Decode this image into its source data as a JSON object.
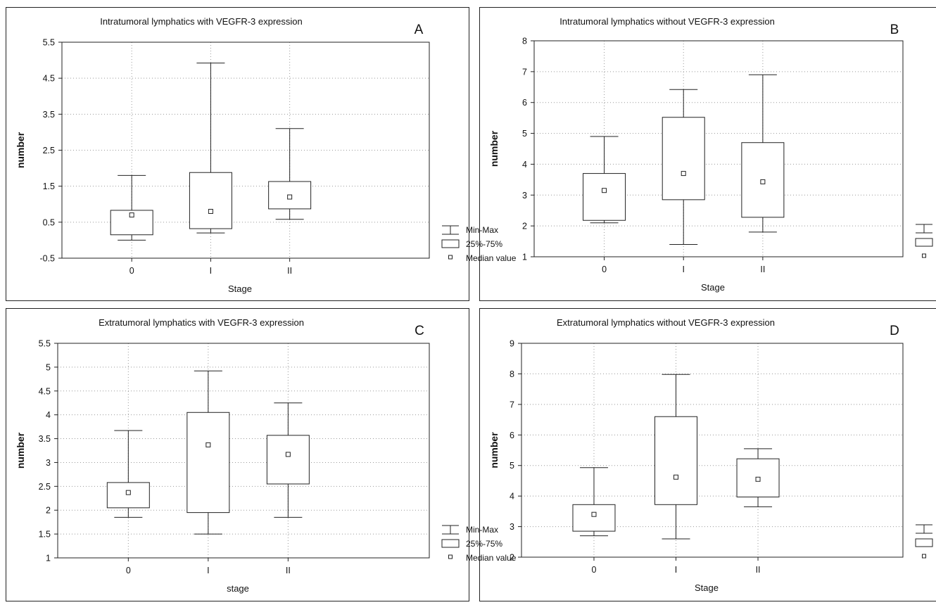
{
  "legend": {
    "minmax": "Min-Max",
    "iqr": "25%-75%",
    "median": "Median value"
  },
  "chart_data": [
    {
      "type": "box",
      "letter": "A",
      "title": "Intratumoral lymphatics with VEGFR-3 expression",
      "xlabel": "Stage",
      "ylabel": "number",
      "categories": [
        "0",
        "I",
        "II"
      ],
      "ylim": [
        -0.5,
        5.5
      ],
      "yticks": [
        "-0.5",
        "0.5",
        "1.5",
        "2.5",
        "3.5",
        "4.5",
        "5.5"
      ],
      "grid": true,
      "boxes": [
        {
          "min": 0.0,
          "q1": 0.15,
          "median": 0.7,
          "q3": 0.83,
          "max": 1.8
        },
        {
          "min": 0.2,
          "q1": 0.32,
          "median": 0.8,
          "q3": 1.88,
          "max": 4.92
        },
        {
          "min": 0.58,
          "q1": 0.87,
          "median": 1.2,
          "q3": 1.63,
          "max": 3.1
        }
      ]
    },
    {
      "type": "box",
      "letter": "B",
      "title": "Intratumoral lymphatics without VEGFR-3 expression",
      "xlabel": "Stage",
      "ylabel": "number",
      "categories": [
        "0",
        "I",
        "II"
      ],
      "ylim": [
        1,
        8
      ],
      "yticks": [
        "1",
        "2",
        "3",
        "4",
        "5",
        "6",
        "7",
        "8"
      ],
      "grid": true,
      "boxes": [
        {
          "min": 2.1,
          "q1": 2.18,
          "median": 3.15,
          "q3": 3.7,
          "max": 4.9
        },
        {
          "min": 1.4,
          "q1": 2.85,
          "median": 3.7,
          "q3": 5.52,
          "max": 6.42
        },
        {
          "min": 1.8,
          "q1": 2.28,
          "median": 3.43,
          "q3": 4.7,
          "max": 6.9
        }
      ]
    },
    {
      "type": "box",
      "letter": "C",
      "title": "Extratumoral lymphatics with VEGFR-3 expression",
      "xlabel": "stage",
      "ylabel": "number",
      "categories": [
        "0",
        "I",
        "II"
      ],
      "ylim": [
        1,
        5.5
      ],
      "yticks": [
        "1",
        "1.5",
        "2",
        "2.5",
        "3",
        "3.5",
        "4",
        "4.5",
        "5",
        "5.5"
      ],
      "grid": true,
      "boxes": [
        {
          "min": 1.85,
          "q1": 2.05,
          "median": 2.37,
          "q3": 2.58,
          "max": 3.67
        },
        {
          "min": 1.5,
          "q1": 1.95,
          "median": 3.37,
          "q3": 4.05,
          "max": 4.92
        },
        {
          "min": 1.85,
          "q1": 2.55,
          "median": 3.17,
          "q3": 3.57,
          "max": 4.25
        }
      ]
    },
    {
      "type": "box",
      "letter": "D",
      "title": "Extratumoral lymphatics without VEGFR-3 expression",
      "xlabel": "Stage",
      "ylabel": "number",
      "categories": [
        "0",
        "I",
        "II"
      ],
      "ylim": [
        2,
        9
      ],
      "yticks": [
        "2",
        "3",
        "4",
        "5",
        "6",
        "7",
        "8",
        "9"
      ],
      "grid": true,
      "boxes": [
        {
          "min": 2.7,
          "q1": 2.85,
          "median": 3.4,
          "q3": 3.72,
          "max": 4.93
        },
        {
          "min": 2.6,
          "q1": 3.72,
          "median": 4.62,
          "q3": 6.6,
          "max": 7.98
        },
        {
          "min": 3.65,
          "q1": 3.97,
          "median": 4.55,
          "q3": 5.22,
          "max": 5.55
        }
      ]
    }
  ]
}
